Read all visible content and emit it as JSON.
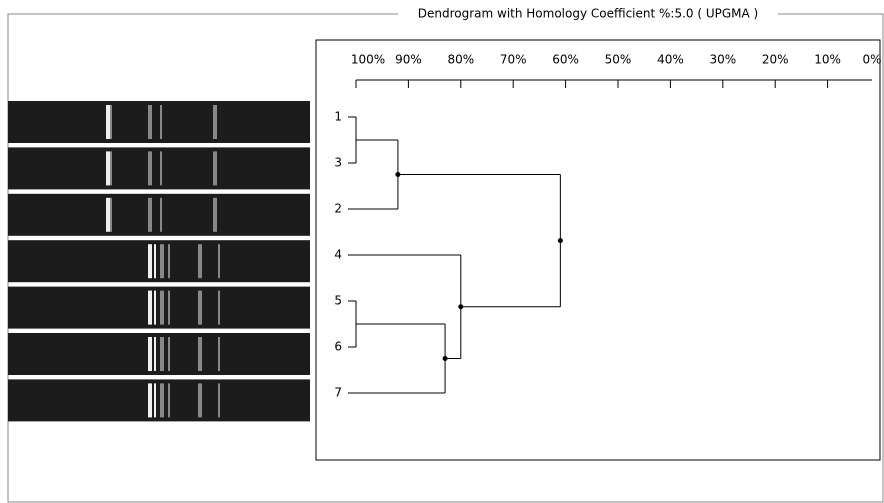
{
  "chart_data": {
    "type": "dendrogram",
    "title": "Dendrogram with Homology Coefficient %:5.0 ( UPGMA )",
    "leaves": [
      "1",
      "3",
      "2",
      "4",
      "5",
      "6",
      "7"
    ],
    "merges": [
      {
        "children": [
          0,
          1
        ],
        "value": 100
      },
      {
        "children": [
          7,
          2
        ],
        "value": 92
      },
      {
        "children": [
          4,
          5
        ],
        "value": 100
      },
      {
        "children": [
          9,
          6
        ],
        "value": 83
      },
      {
        "children": [
          3,
          10
        ],
        "value": 80
      },
      {
        "children": [
          8,
          11
        ],
        "value": 61
      }
    ],
    "xlim": [
      100,
      0
    ],
    "xticks": [
      {
        "value": 100,
        "label": "100%"
      },
      {
        "value": 90,
        "label": "90%"
      },
      {
        "value": 80,
        "label": "80%"
      },
      {
        "value": 70,
        "label": "70%"
      },
      {
        "value": 60,
        "label": "60%"
      },
      {
        "value": 50,
        "label": "50%"
      },
      {
        "value": 40,
        "label": "40%"
      },
      {
        "value": 30,
        "label": "30%"
      },
      {
        "value": 20,
        "label": "20%"
      },
      {
        "value": 10,
        "label": "10%"
      },
      {
        "value": 0,
        "label": "0%"
      }
    ],
    "color": "#000000"
  }
}
